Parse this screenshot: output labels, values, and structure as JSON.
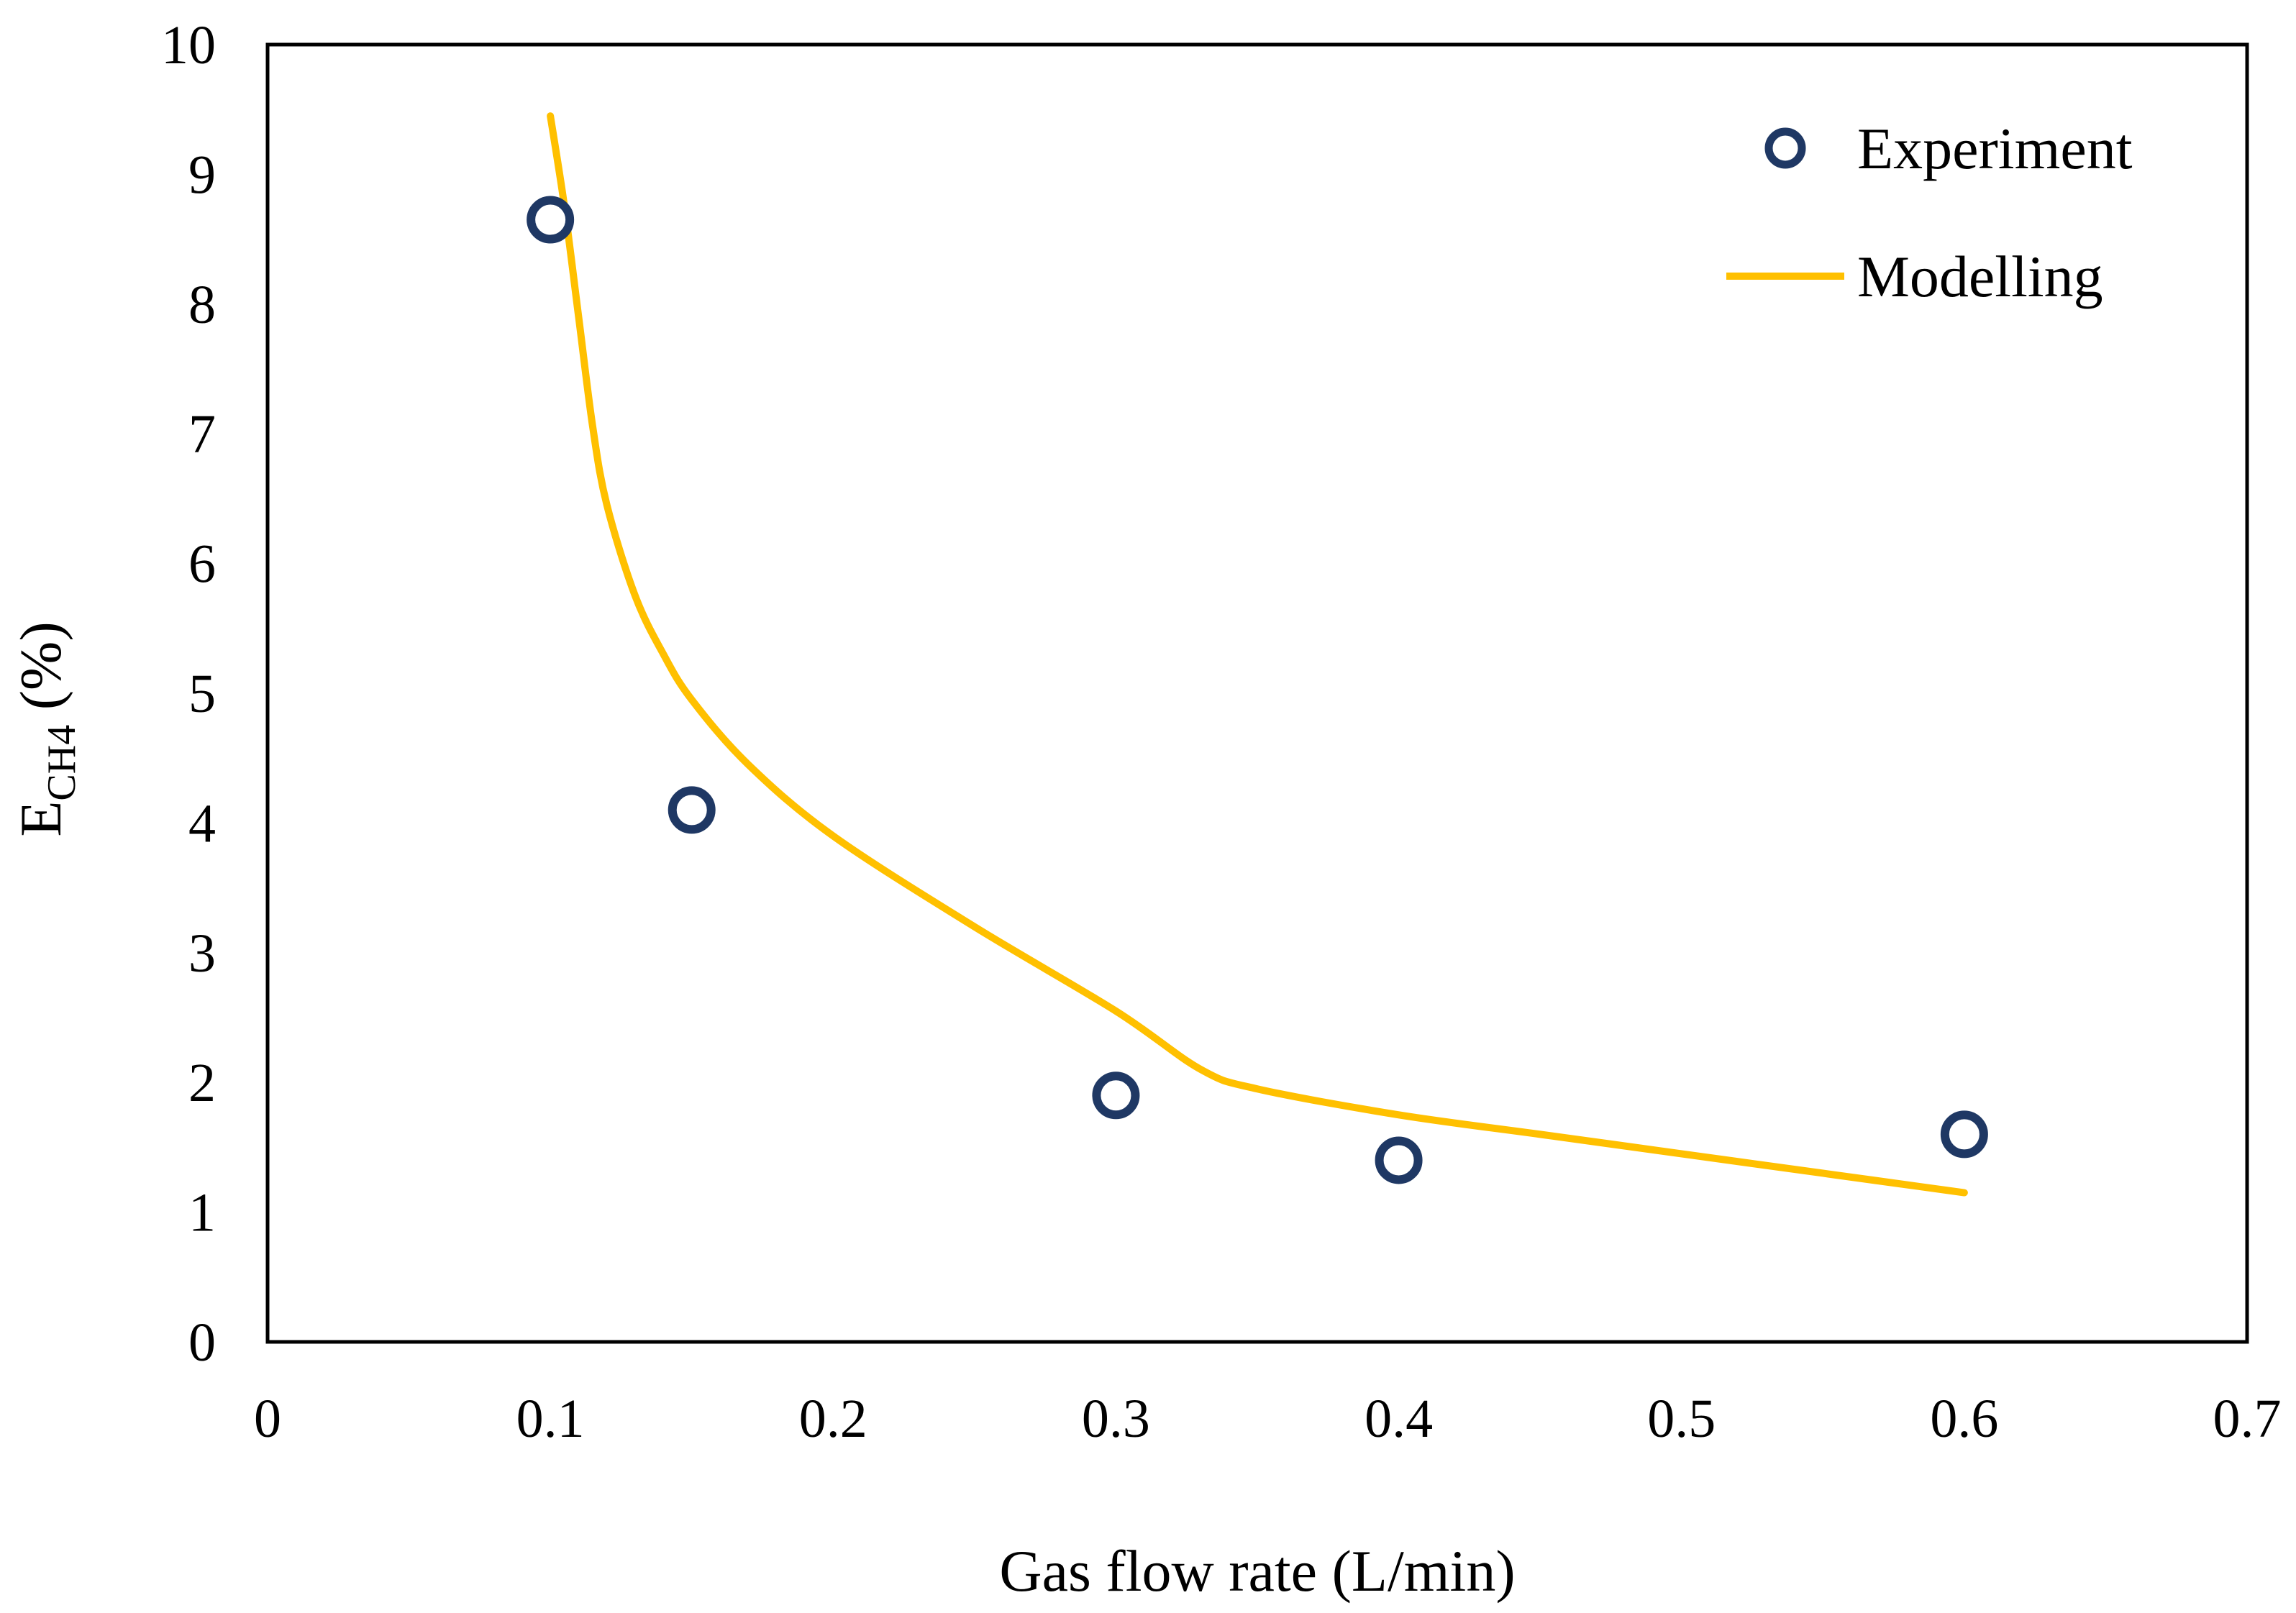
{
  "chart_data": {
    "type": "scatter",
    "title": "",
    "xlabel": "Gas flow rate (L/min)",
    "ylabel": {
      "main": "E",
      "subscript": "CH4",
      "suffix": " (%)"
    },
    "xlim": [
      0,
      0.7
    ],
    "ylim": [
      0,
      10
    ],
    "x_ticks": [
      "0",
      "0.1",
      "0.2",
      "0.3",
      "0.4",
      "0.5",
      "0.6",
      "0.7"
    ],
    "y_ticks": [
      "0",
      "1",
      "2",
      "3",
      "4",
      "5",
      "6",
      "7",
      "8",
      "9",
      "10"
    ],
    "grid": false,
    "legend_position": "top-right",
    "series": [
      {
        "name": "Experiment",
        "kind": "markers",
        "marker": "open-circle",
        "color": "#1f3864",
        "x": [
          0.1,
          0.15,
          0.3,
          0.4,
          0.6
        ],
        "y": [
          8.65,
          4.1,
          1.9,
          1.4,
          1.6
        ]
      },
      {
        "name": "Modelling",
        "kind": "line",
        "color": "#ffc000",
        "x": [
          0.1,
          0.105,
          0.11,
          0.115,
          0.12,
          0.13,
          0.14,
          0.15,
          0.17,
          0.2,
          0.25,
          0.3,
          0.33,
          0.35,
          0.4,
          0.45,
          0.5,
          0.55,
          0.6
        ],
        "y": [
          9.45,
          8.75,
          7.9,
          7.05,
          6.45,
          5.75,
          5.3,
          4.95,
          4.45,
          3.9,
          3.2,
          2.55,
          2.1,
          1.95,
          1.75,
          1.6,
          1.45,
          1.3,
          1.15
        ]
      }
    ]
  }
}
